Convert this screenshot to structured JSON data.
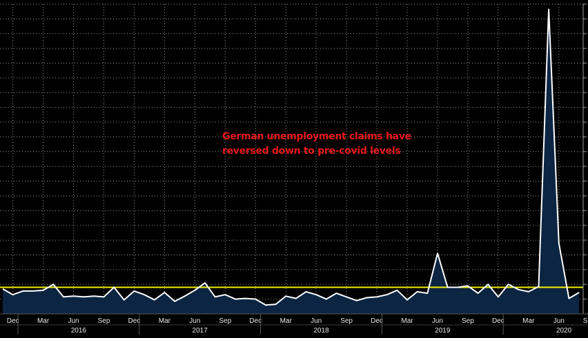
{
  "chart_data": {
    "type": "area",
    "title": "",
    "xlabel": "",
    "ylabel": "",
    "annotation": [
      "German unemployment claims have",
      "reversed down to pre-covid levels"
    ],
    "x_start": "2015-11",
    "x": [
      "2015-11",
      "2015-12",
      "2016-01",
      "2016-02",
      "2016-03",
      "2016-04",
      "2016-05",
      "2016-06",
      "2016-07",
      "2016-08",
      "2016-09",
      "2016-10",
      "2016-11",
      "2016-12",
      "2017-01",
      "2017-02",
      "2017-03",
      "2017-04",
      "2017-05",
      "2017-06",
      "2017-07",
      "2017-08",
      "2017-09",
      "2017-10",
      "2017-11",
      "2017-12",
      "2018-01",
      "2018-02",
      "2018-03",
      "2018-04",
      "2018-05",
      "2018-06",
      "2018-07",
      "2018-08",
      "2018-09",
      "2018-10",
      "2018-11",
      "2018-12",
      "2019-01",
      "2019-02",
      "2019-03",
      "2019-04",
      "2019-05",
      "2019-06",
      "2019-07",
      "2019-08",
      "2019-09",
      "2019-10",
      "2019-11",
      "2019-12",
      "2020-01",
      "2020-02",
      "2020-03",
      "2020-04",
      "2020-05",
      "2020-06",
      "2020-07",
      "2020-08"
    ],
    "values": [
      -6,
      -14,
      -9,
      -9,
      -8,
      0,
      -17,
      -16,
      -17,
      -16,
      -17,
      -4,
      -21,
      -9,
      -14,
      -21,
      -11,
      -23,
      -16,
      -8,
      2,
      -17,
      -14,
      -20,
      -19,
      -20,
      -28,
      -27,
      -16,
      -19,
      -10,
      -14,
      -20,
      -12,
      -17,
      -22,
      -18,
      -17,
      -14,
      -8,
      -21,
      -10,
      -12,
      42,
      -4,
      -4,
      -2,
      -12,
      0,
      -17,
      0,
      -7,
      -10,
      -3,
      373,
      56,
      -19,
      -11
    ],
    "reference_line": {
      "value": -4,
      "color": "#f2f200"
    },
    "ylim": [
      -40,
      380
    ],
    "ytick_step": 20,
    "x_ticks": [
      "Dec",
      "Mar",
      "Jun",
      "Sep",
      "Dec",
      "Mar",
      "Jun",
      "Sep",
      "Dec",
      "Mar",
      "Jun",
      "Sep",
      "Dec",
      "Mar",
      "Jun",
      "Sep",
      "Dec",
      "Mar",
      "Jun",
      "Sep"
    ],
    "years": [
      "2016",
      "2017",
      "2018",
      "2019",
      "2020"
    ],
    "grid": true,
    "colors": {
      "background": "#000000",
      "area_fill": "#0c2542",
      "line": "#ffffff",
      "grid": "#9a9a9a",
      "axis_text": "#e8e8e8",
      "annotation": "#e8181b"
    }
  }
}
